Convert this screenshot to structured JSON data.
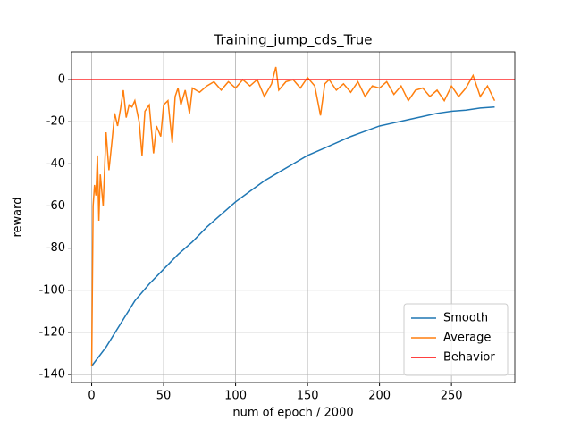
{
  "chart_data": {
    "type": "line",
    "title": "Training_jump_cds_True",
    "x_label": "num of epoch / 2000",
    "y_label": "reward",
    "xlim": [
      -14,
      294
    ],
    "ylim": [
      -143.8,
      13.2
    ],
    "xticks": [
      0,
      50,
      100,
      150,
      200,
      250
    ],
    "yticks": [
      -140,
      -120,
      -100,
      -80,
      -60,
      -40,
      -20,
      0
    ],
    "grid": true,
    "legend": "lower right",
    "series": [
      {
        "name": "Smooth",
        "color": "#1f77b4",
        "x": [
          0,
          10,
          20,
          30,
          40,
          50,
          60,
          70,
          80,
          90,
          100,
          110,
          120,
          130,
          140,
          150,
          160,
          170,
          180,
          190,
          200,
          210,
          220,
          230,
          240,
          250,
          260,
          270,
          280
        ],
        "values": [
          -136,
          -127,
          -116,
          -105,
          -97,
          -90,
          -83,
          -77,
          -70,
          -64,
          -58,
          -53,
          -48,
          -44,
          -40,
          -36,
          -33,
          -30,
          -27,
          -24.5,
          -22,
          -20.5,
          -19,
          -17.5,
          -16,
          -15,
          -14.5,
          -13.5,
          -13
        ]
      },
      {
        "name": "Average",
        "color": "#ff7f0e",
        "x": [
          0,
          1,
          2,
          3,
          4,
          5,
          6,
          8,
          10,
          12,
          14,
          16,
          18,
          20,
          22,
          24,
          26,
          28,
          30,
          33,
          35,
          37,
          40,
          43,
          45,
          48,
          50,
          53,
          56,
          58,
          60,
          62,
          65,
          68,
          70,
          75,
          80,
          85,
          90,
          95,
          100,
          105,
          110,
          115,
          120,
          125,
          128,
          130,
          135,
          140,
          145,
          150,
          155,
          159,
          162,
          165,
          170,
          175,
          180,
          185,
          190,
          195,
          200,
          205,
          210,
          215,
          220,
          225,
          230,
          235,
          240,
          245,
          250,
          255,
          260,
          265,
          270,
          275,
          280
        ],
        "values": [
          -136,
          -60,
          -50,
          -55,
          -36,
          -67,
          -45,
          -60,
          -25,
          -43,
          -30,
          -16,
          -22,
          -14,
          -5,
          -18,
          -12,
          -13,
          -10,
          -20,
          -36,
          -15,
          -12,
          -35,
          -22,
          -27,
          -12,
          -10,
          -30,
          -8,
          -4,
          -12,
          -5,
          -16,
          -4,
          -6,
          -3,
          -1,
          -5,
          -1,
          -4,
          0,
          -3,
          0,
          -8,
          -2,
          6,
          -5,
          -1,
          0,
          -4,
          1,
          -3,
          -17,
          -2,
          0,
          -5,
          -2,
          -6,
          -1,
          -8,
          -3,
          -4,
          -1,
          -7,
          -3,
          -10,
          -5,
          -4,
          -8,
          -5,
          -10,
          -3,
          -8,
          -4,
          2,
          -8,
          -3,
          -10
        ]
      },
      {
        "name": "Behavior",
        "color": "#ff0000",
        "x": [
          -14,
          294
        ],
        "values": [
          0,
          0
        ]
      }
    ]
  }
}
